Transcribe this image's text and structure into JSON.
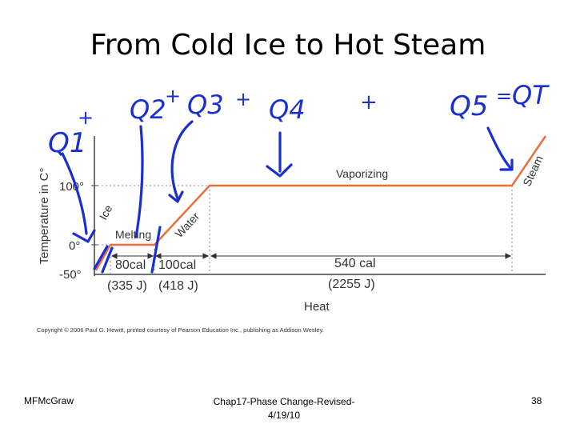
{
  "slide": {
    "title": "From Cold Ice to Hot Steam",
    "footer_left": "MFMcGraw",
    "footer_center_line1": "Chap17-Phase Change-Revised-",
    "footer_center_line2": "4/19/10",
    "footer_right": "38"
  },
  "diagram": {
    "y_axis_label": "Temperature in C°",
    "x_axis_label": "Heat",
    "y_ticks": [
      "100°",
      "0°",
      "-50°"
    ],
    "phase_labels": {
      "ice": "Ice",
      "melting": "Melting",
      "water": "Water",
      "vaporizing": "Vaporizing",
      "steam": "Steam"
    },
    "heat_segments": [
      {
        "cal": "80cal",
        "joules": "(335 J)"
      },
      {
        "cal": "100cal",
        "joules": "(418 J)"
      },
      {
        "cal": "540 cal",
        "joules": "(2255 J)"
      }
    ],
    "copyright": "Copyright © 2006 Paul G. Hewitt, printed courtesy of Pearson Education Inc., publishing as Addison Wesley.",
    "line_color": "#e8703a",
    "ink_color": "#1a2fd0"
  },
  "handwriting": {
    "q1": "Q1",
    "q2": "Q2",
    "q3": "Q3",
    "q4": "Q4",
    "q5": "Q5",
    "qt": "QT",
    "plus_1": "+",
    "plus_2": "+",
    "plus_3": "+",
    "plus_4": "+",
    "equals": "="
  }
}
